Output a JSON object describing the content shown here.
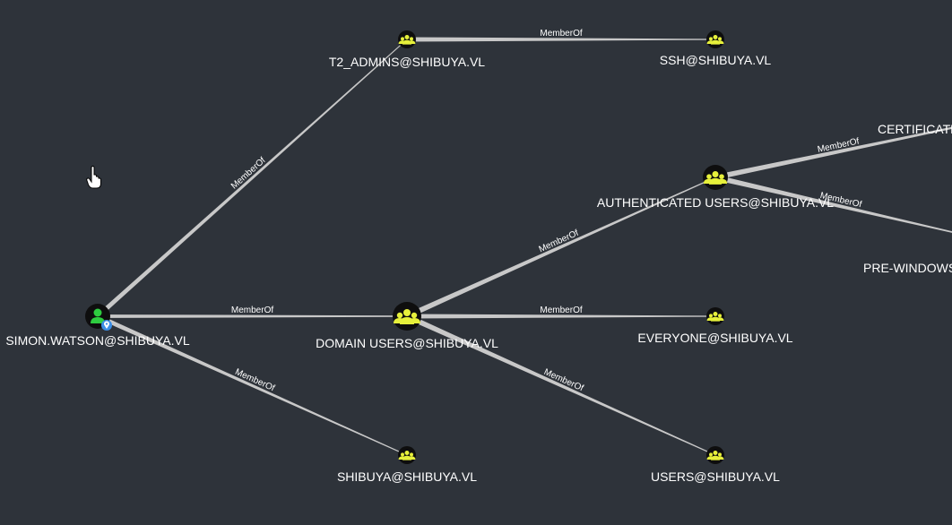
{
  "graph": {
    "nodes": [
      {
        "id": "simon",
        "label": "SIMON.WATSON@SHIBUYA.VL",
        "kind": "user",
        "owned": true
      },
      {
        "id": "t2admins",
        "label": "T2_ADMINS@SHIBUYA.VL",
        "kind": "group"
      },
      {
        "id": "ssh",
        "label": "SSH@SHIBUYA.VL",
        "kind": "group"
      },
      {
        "id": "domainusers",
        "label": "DOMAIN USERS@SHIBUYA.VL",
        "kind": "group"
      },
      {
        "id": "authusers",
        "label": "AUTHENTICATED USERS@SHIBUYA.VL",
        "kind": "group"
      },
      {
        "id": "everyone",
        "label": "EVERYONE@SHIBUYA.VL",
        "kind": "group"
      },
      {
        "id": "users",
        "label": "USERS@SHIBUYA.VL",
        "kind": "group"
      },
      {
        "id": "shibuya",
        "label": "SHIBUYA@SHIBUYA.VL",
        "kind": "group"
      },
      {
        "id": "cert",
        "label": "CERTIFICATE",
        "kind": "group"
      },
      {
        "id": "prewin",
        "label": "PRE-WINDOWS",
        "kind": "group"
      }
    ],
    "edges": [
      {
        "from": "simon",
        "to": "t2admins",
        "label": "MemberOf"
      },
      {
        "from": "t2admins",
        "to": "ssh",
        "label": "MemberOf"
      },
      {
        "from": "simon",
        "to": "domainusers",
        "label": "MemberOf"
      },
      {
        "from": "simon",
        "to": "shibuya",
        "label": "MemberOf"
      },
      {
        "from": "domainusers",
        "to": "authusers",
        "label": "MemberOf"
      },
      {
        "from": "domainusers",
        "to": "everyone",
        "label": "MemberOf"
      },
      {
        "from": "domainusers",
        "to": "users",
        "label": "MemberOf"
      },
      {
        "from": "authusers",
        "to": "cert",
        "label": "MemberOf"
      },
      {
        "from": "authusers",
        "to": "prewin",
        "label": "MemberOf"
      }
    ]
  },
  "cursor": {
    "icon": "hand-pointer-icon"
  },
  "colors": {
    "background": "#2e333a",
    "edge": "#c8c8c8",
    "group_icon": "#e6f03b",
    "user_icon": "#2ecc40",
    "owned_badge": "#3d8fe6",
    "label": "#ffffff"
  }
}
